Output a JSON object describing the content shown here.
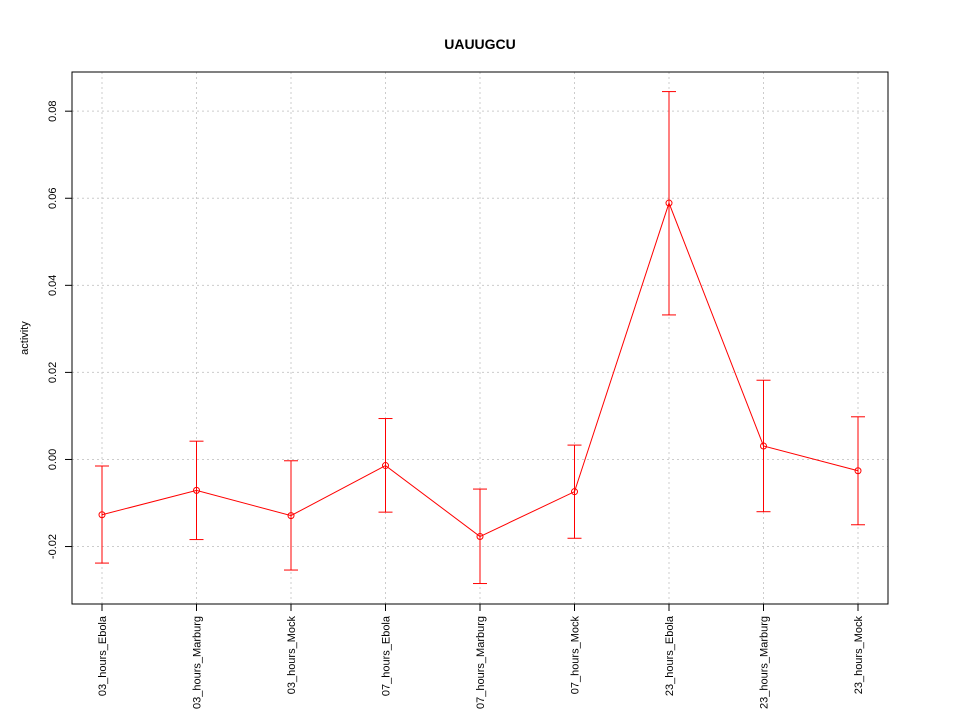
{
  "chart_data": {
    "type": "line",
    "title": "UAUUGCU",
    "xlabel": "",
    "ylabel": "activity",
    "categories": [
      "03_hours_Ebola",
      "03_hours_Marburg",
      "03_hours_Mock",
      "07_hours_Ebola",
      "07_hours_Marburg",
      "07_hours_Mock",
      "23_hours_Ebola",
      "23_hours_Marburg",
      "23_hours_Mock"
    ],
    "y_ticks": [
      "-0.02",
      "0.00",
      "0.02",
      "0.04",
      "0.06",
      "0.08"
    ],
    "ylim": [
      -0.0332,
      0.089
    ],
    "grid": true,
    "series": [
      {
        "values": [
          -0.0127,
          -0.0071,
          -0.0129,
          -0.0014,
          -0.0177,
          -0.0074,
          0.0589,
          0.0031,
          -0.0026
        ],
        "err_low": [
          -0.0238,
          -0.0184,
          -0.0254,
          -0.0121,
          -0.0285,
          -0.0181,
          0.0332,
          -0.012,
          -0.015
        ],
        "err_high": [
          -0.0015,
          0.0042,
          -0.0003,
          0.0094,
          -0.0068,
          0.0033,
          0.0845,
          0.0182,
          0.0098
        ],
        "color": "#ff0000"
      }
    ]
  }
}
